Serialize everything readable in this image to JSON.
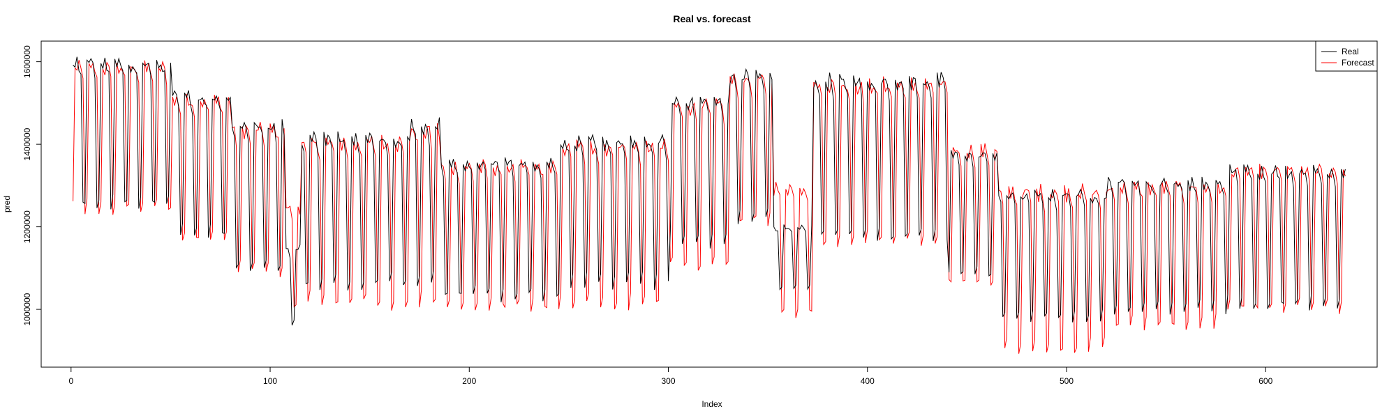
{
  "chart_data": {
    "type": "line",
    "title": "Real vs. forecast",
    "xlabel": "Index",
    "ylabel": "pred",
    "xlim": [
      -15,
      656
    ],
    "ylim": [
      860000,
      1650000
    ],
    "x_ticks": [
      0,
      100,
      200,
      300,
      400,
      500,
      600
    ],
    "y_ticks": [
      1000000,
      1200000,
      1400000,
      1600000
    ],
    "x_tick_labels": [
      "0",
      "100",
      "200",
      "300",
      "400",
      "500",
      "600"
    ],
    "y_tick_labels": [
      "1000000",
      "1200000",
      "1400000",
      "1600000"
    ],
    "grid": false,
    "legend_position": "top-right",
    "x_start": 1,
    "x_end": 640,
    "period": 7,
    "series": [
      {
        "name": "Real",
        "color": "#000000",
        "segments": [
          {
            "from": 1,
            "to": 50,
            "high": 1600000,
            "low": 1250000
          },
          {
            "from": 50,
            "to": 80,
            "high": 1520000,
            "low": 1180000
          },
          {
            "from": 80,
            "to": 107,
            "high": 1450000,
            "low": 1100000
          },
          {
            "from": 107,
            "to": 115,
            "high": 1150000,
            "low": 960000
          },
          {
            "from": 115,
            "to": 170,
            "high": 1420000,
            "low": 1060000
          },
          {
            "from": 170,
            "to": 185,
            "high": 1450000,
            "low": 1060000
          },
          {
            "from": 185,
            "to": 245,
            "high": 1360000,
            "low": 1030000
          },
          {
            "from": 245,
            "to": 300,
            "high": 1410000,
            "low": 1060000
          },
          {
            "from": 300,
            "to": 330,
            "high": 1510000,
            "low": 1160000
          },
          {
            "from": 330,
            "to": 352,
            "high": 1570000,
            "low": 1220000
          },
          {
            "from": 352,
            "to": 372,
            "high": 1200000,
            "low": 1050000
          },
          {
            "from": 372,
            "to": 440,
            "high": 1560000,
            "low": 1170000
          },
          {
            "from": 440,
            "to": 465,
            "high": 1380000,
            "low": 1080000
          },
          {
            "from": 465,
            "to": 520,
            "high": 1280000,
            "low": 980000
          },
          {
            "from": 520,
            "to": 580,
            "high": 1310000,
            "low": 1000000
          },
          {
            "from": 580,
            "to": 640,
            "high": 1340000,
            "low": 1010000
          }
        ]
      },
      {
        "name": "Forecast",
        "color": "#ff0000",
        "segments": [
          {
            "from": 1,
            "to": 50,
            "high": 1590000,
            "low": 1240000
          },
          {
            "from": 50,
            "to": 80,
            "high": 1510000,
            "low": 1170000
          },
          {
            "from": 80,
            "to": 107,
            "high": 1440000,
            "low": 1090000
          },
          {
            "from": 107,
            "to": 115,
            "high": 1250000,
            "low": 1000000
          },
          {
            "from": 115,
            "to": 170,
            "high": 1410000,
            "low": 1010000
          },
          {
            "from": 170,
            "to": 185,
            "high": 1440000,
            "low": 1010000
          },
          {
            "from": 185,
            "to": 245,
            "high": 1350000,
            "low": 1000000
          },
          {
            "from": 245,
            "to": 300,
            "high": 1400000,
            "low": 1010000
          },
          {
            "from": 300,
            "to": 330,
            "high": 1500000,
            "low": 1100000
          },
          {
            "from": 330,
            "to": 352,
            "high": 1560000,
            "low": 1210000
          },
          {
            "from": 352,
            "to": 372,
            "high": 1300000,
            "low": 990000
          },
          {
            "from": 372,
            "to": 440,
            "high": 1550000,
            "low": 1160000
          },
          {
            "from": 440,
            "to": 465,
            "high": 1390000,
            "low": 1060000
          },
          {
            "from": 465,
            "to": 520,
            "high": 1290000,
            "low": 900000
          },
          {
            "from": 520,
            "to": 580,
            "high": 1300000,
            "low": 960000
          },
          {
            "from": 580,
            "to": 640,
            "high": 1340000,
            "low": 1000000
          }
        ]
      }
    ]
  }
}
